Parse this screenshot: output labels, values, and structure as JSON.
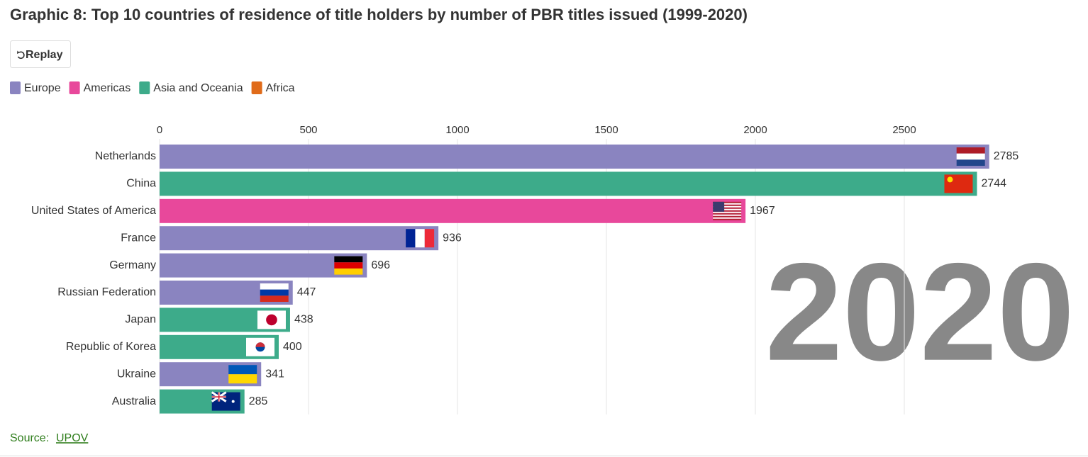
{
  "title": "Graphic 8: Top 10 countries of residence of title holders by number of PBR titles issued (1999-2020)",
  "replay": "Replay",
  "chart_data": {
    "type": "bar",
    "orientation": "horizontal",
    "categories": [
      "Netherlands",
      "China",
      "United States of America",
      "France",
      "Germany",
      "Russian Federation",
      "Japan",
      "Republic of Korea",
      "Ukraine",
      "Australia"
    ],
    "values": [
      2785,
      2744,
      1967,
      936,
      696,
      447,
      438,
      400,
      341,
      285
    ],
    "colors": [
      "#8a84c0",
      "#3dab8a",
      "#e8489b",
      "#8a84c0",
      "#8a84c0",
      "#8a84c0",
      "#3dab8a",
      "#3dab8a",
      "#8a84c0",
      "#3dab8a"
    ],
    "legend": [
      {
        "name": "Europe",
        "color": "#8a84c0"
      },
      {
        "name": "Americas",
        "color": "#e8489b"
      },
      {
        "name": "Asia and Oceania",
        "color": "#3dab8a"
      },
      {
        "name": "Africa",
        "color": "#e06b1a"
      }
    ],
    "xlim": [
      0,
      3000
    ],
    "xticks": [
      0,
      500,
      1000,
      1500,
      2000,
      2500
    ],
    "grid": true,
    "year": "2020"
  },
  "source": {
    "label": "Source:",
    "link": "UPOV"
  }
}
